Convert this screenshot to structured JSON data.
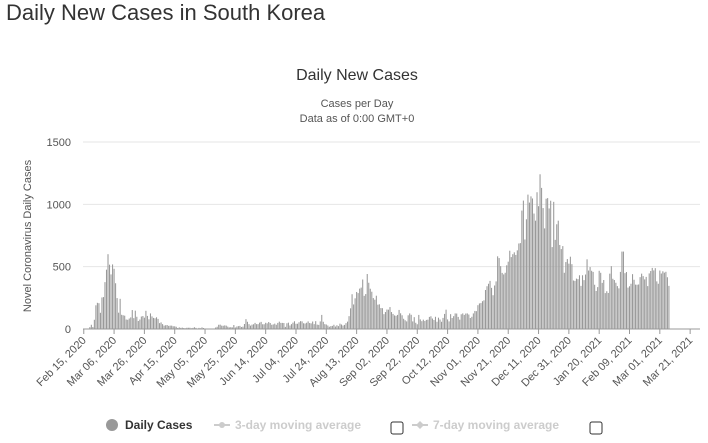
{
  "page": {
    "heading": "Daily New Cases in South Korea"
  },
  "chart_data": {
    "type": "bar",
    "title": "Daily New Cases",
    "subtitle_line1": "Cases per Day",
    "subtitle_line2": "Data as of 0:00 GMT+0",
    "ylabel": "Novel Coronavirus Daily Cases",
    "xlabel": "",
    "ylim": [
      0,
      1500
    ],
    "y_ticks": [
      0,
      500,
      1000,
      1500
    ],
    "grid": true,
    "bar_color": "#999999",
    "x_start_date": "2020-02-15",
    "x_end_date": "2021-03-27",
    "x_tick_labels": [
      "Feb 15, 2020",
      "Mar 06, 2020",
      "Mar 26, 2020",
      "Apr 15, 2020",
      "May 05, 2020",
      "May 25, 2020",
      "Jun 14, 2020",
      "Jul 04, 2020",
      "Jul 24, 2020",
      "Aug 13, 2020",
      "Sep 02, 2020",
      "Sep 22, 2020",
      "Oct 12, 2020",
      "Nov 01, 2020",
      "Nov 21, 2020",
      "Dec 11, 2020",
      "Dec 31, 2020",
      "Jan 20, 2021",
      "Feb 09, 2021",
      "Mar 01, 2021",
      "Mar 21, 2021"
    ],
    "x_tick_dates": [
      "2020-02-15",
      "2020-03-06",
      "2020-03-26",
      "2020-04-15",
      "2020-05-05",
      "2020-05-25",
      "2020-06-14",
      "2020-07-04",
      "2020-07-24",
      "2020-08-13",
      "2020-09-02",
      "2020-09-22",
      "2020-10-12",
      "2020-11-01",
      "2020-11-21",
      "2020-12-11",
      "2020-12-31",
      "2021-01-20",
      "2021-02-09",
      "2021-03-01",
      "2021-03-21"
    ],
    "series": [
      {
        "name": "Daily Cases",
        "values": [
          0,
          0,
          1,
          1,
          15,
          34,
          16,
          74,
          190,
          210,
          207,
          130,
          253,
          256,
          376,
          476,
          600,
          516,
          438,
          518,
          483,
          367,
          248,
          131,
          242,
          114,
          110,
          107,
          76,
          74,
          84,
          93,
          152,
          87,
          147,
          98,
          64,
          76,
          100,
          104,
          91,
          146,
          105,
          78,
          125,
          101,
          89,
          86,
          94,
          81,
          47,
          53,
          39,
          27,
          30,
          32,
          25,
          27,
          27,
          22,
          22,
          18,
          8,
          13,
          9,
          11,
          8,
          6,
          10,
          10,
          10,
          6,
          9,
          14,
          9,
          4,
          9,
          6,
          13,
          8,
          3,
          2,
          4,
          4,
          3,
          3,
          2,
          12,
          18,
          34,
          35,
          27,
          26,
          29,
          27,
          19,
          13,
          15,
          13,
          32,
          12,
          20,
          23,
          25,
          16,
          19,
          40,
          79,
          58,
          39,
          27,
          35,
          38,
          49,
          39,
          39,
          51,
          57,
          38,
          38,
          50,
          45,
          56,
          48,
          34,
          37,
          43,
          34,
          49,
          59,
          49,
          49,
          48,
          17,
          46,
          51,
          28,
          39,
          51,
          62,
          42,
          42,
          54,
          63,
          61,
          46,
          44,
          50,
          61,
          48,
          45,
          60,
          39,
          63,
          35,
          33,
          61,
          113,
          58,
          39,
          36,
          28,
          18,
          23,
          25,
          34,
          20,
          30,
          23,
          43,
          36,
          28,
          33,
          47,
          59,
          103,
          166,
          279,
          197,
          246,
          297,
          288,
          324,
          332,
          397,
          266,
          280,
          441,
          371,
          323,
          299,
          248,
          235,
          267,
          195,
          198,
          168,
          167,
          119,
          136,
          156,
          155,
          176,
          136,
          121,
          109,
          106,
          113,
          153,
          126,
          110,
          82,
          70,
          61,
          110,
          125,
          114,
          61,
          95,
          50,
          38,
          113,
          77,
          63,
          75,
          64,
          73,
          75,
          97,
          102,
          84,
          72,
          98,
          58,
          91,
          76,
          58,
          89,
          121,
          155,
          77,
          61,
          119,
          88,
          103,
          125,
          124,
          97,
          75,
          118,
          125,
          113,
          124,
          125,
          116,
          88,
          98,
          125,
          145,
          143,
          191,
          205,
          208,
          223,
          230,
          313,
          343,
          363,
          386,
          330,
          271,
          349,
          382,
          583,
          569,
          504,
          450,
          438,
          451,
          511,
          540,
          628,
          577,
          600,
          615,
          594,
          631,
          686,
          689,
          950,
          1030,
          718,
          880,
          1078,
          1014,
          1064,
          1047,
          926,
          869,
          1097,
          985,
          1241,
          1132,
          970,
          807,
          1045,
          1050,
          967,
          1029,
          657,
          1020,
          715,
          840,
          869,
          674,
          641,
          665,
          451,
          537,
          561,
          524,
          580,
          520,
          389,
          386,
          404,
          400,
          431,
          346,
          431,
          392,
          437,
          559,
          469,
          497,
          467,
          458,
          355,
          305,
          336,
          467,
          451,
          370,
          393,
          288,
          303,
          289,
          444,
          504,
          403,
          393,
          371,
          344,
          326,
          458,
          621,
          621,
          448,
          457,
          332,
          343,
          363,
          440,
          395,
          356,
          355,
          357,
          416,
          444,
          424,
          398,
          418,
          344,
          446,
          465,
          490,
          470,
          488,
          382,
          363,
          469,
          445,
          463,
          452,
          459,
          415,
          346
        ]
      }
    ]
  },
  "legend": {
    "items": [
      {
        "label": "Daily Cases",
        "active": true,
        "color": "#999999"
      },
      {
        "label": "3-day moving average",
        "active": false,
        "color": "#cccccc"
      },
      {
        "label": "7-day moving average",
        "active": false,
        "color": "#cccccc"
      }
    ]
  }
}
